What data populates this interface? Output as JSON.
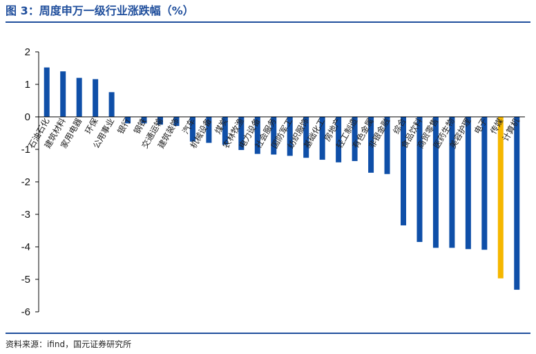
{
  "title": "图 3：周度申万一级行业涨跌幅（%）",
  "source": "资料来源：ifind，国元证券研究所",
  "colors": {
    "bar": "#0f4fa8",
    "highlight": "#f5b700",
    "title": "#1f4e9c"
  },
  "chart_data": {
    "type": "bar",
    "title": "图 3：周度申万一级行业涨跌幅（%）",
    "xlabel": "",
    "ylabel": "",
    "ylim": [
      -6,
      2
    ],
    "yticks": [
      "2",
      "1",
      "0",
      "-1",
      "-2",
      "-3",
      "-4",
      "-5",
      "-6"
    ],
    "grid": false,
    "legend": "none",
    "categories": [
      "石油石化",
      "建筑材料",
      "家用电器",
      "环保",
      "公用事业",
      "银行",
      "钢铁",
      "交通运输",
      "建筑装饰",
      "汽车",
      "机械设备",
      "煤炭",
      "农林牧渔",
      "电力设备",
      "社会服务",
      "国防军工",
      "纺织服饰",
      "基础化工",
      "房地产",
      "轻工制造",
      "有色金属",
      "非银金融",
      "综合",
      "食品饮料",
      "商贸零售",
      "医药生物",
      "美容护理",
      "电子",
      "传媒",
      "计算机"
    ],
    "values": [
      1.52,
      1.4,
      1.2,
      1.16,
      0.76,
      -0.2,
      -0.2,
      -0.24,
      -0.28,
      -0.76,
      -0.8,
      -0.86,
      -1.02,
      -1.14,
      -1.16,
      -1.2,
      -1.26,
      -1.32,
      -1.4,
      -1.36,
      -1.72,
      -1.76,
      -3.34,
      -3.85,
      -4.03,
      -4.03,
      -4.07,
      -4.09,
      -4.97,
      -5.32
    ],
    "highlight_category": "传媒"
  }
}
